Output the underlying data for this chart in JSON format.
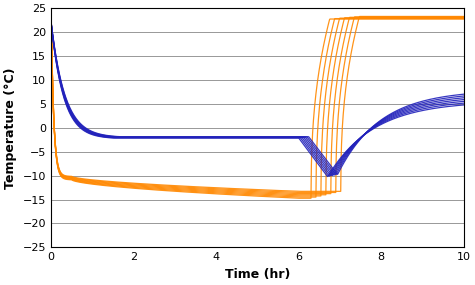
{
  "title": "",
  "xlabel": "Time (hr)",
  "ylabel": "Temperature (°C)",
  "xlim": [
    0,
    10
  ],
  "ylim": [
    -25,
    25
  ],
  "xticks": [
    0,
    2,
    4,
    6,
    8,
    10
  ],
  "yticks": [
    -25,
    -20,
    -15,
    -10,
    -5,
    0,
    5,
    10,
    15,
    20,
    25
  ],
  "blue_color": "#2222BB",
  "orange_color": "#FF8800",
  "line_width": 0.9,
  "figsize": [
    4.75,
    2.85
  ],
  "dpi": 100,
  "num_curves": 7,
  "bg_color": "#FFFFFF",
  "grid_color": "#888888"
}
